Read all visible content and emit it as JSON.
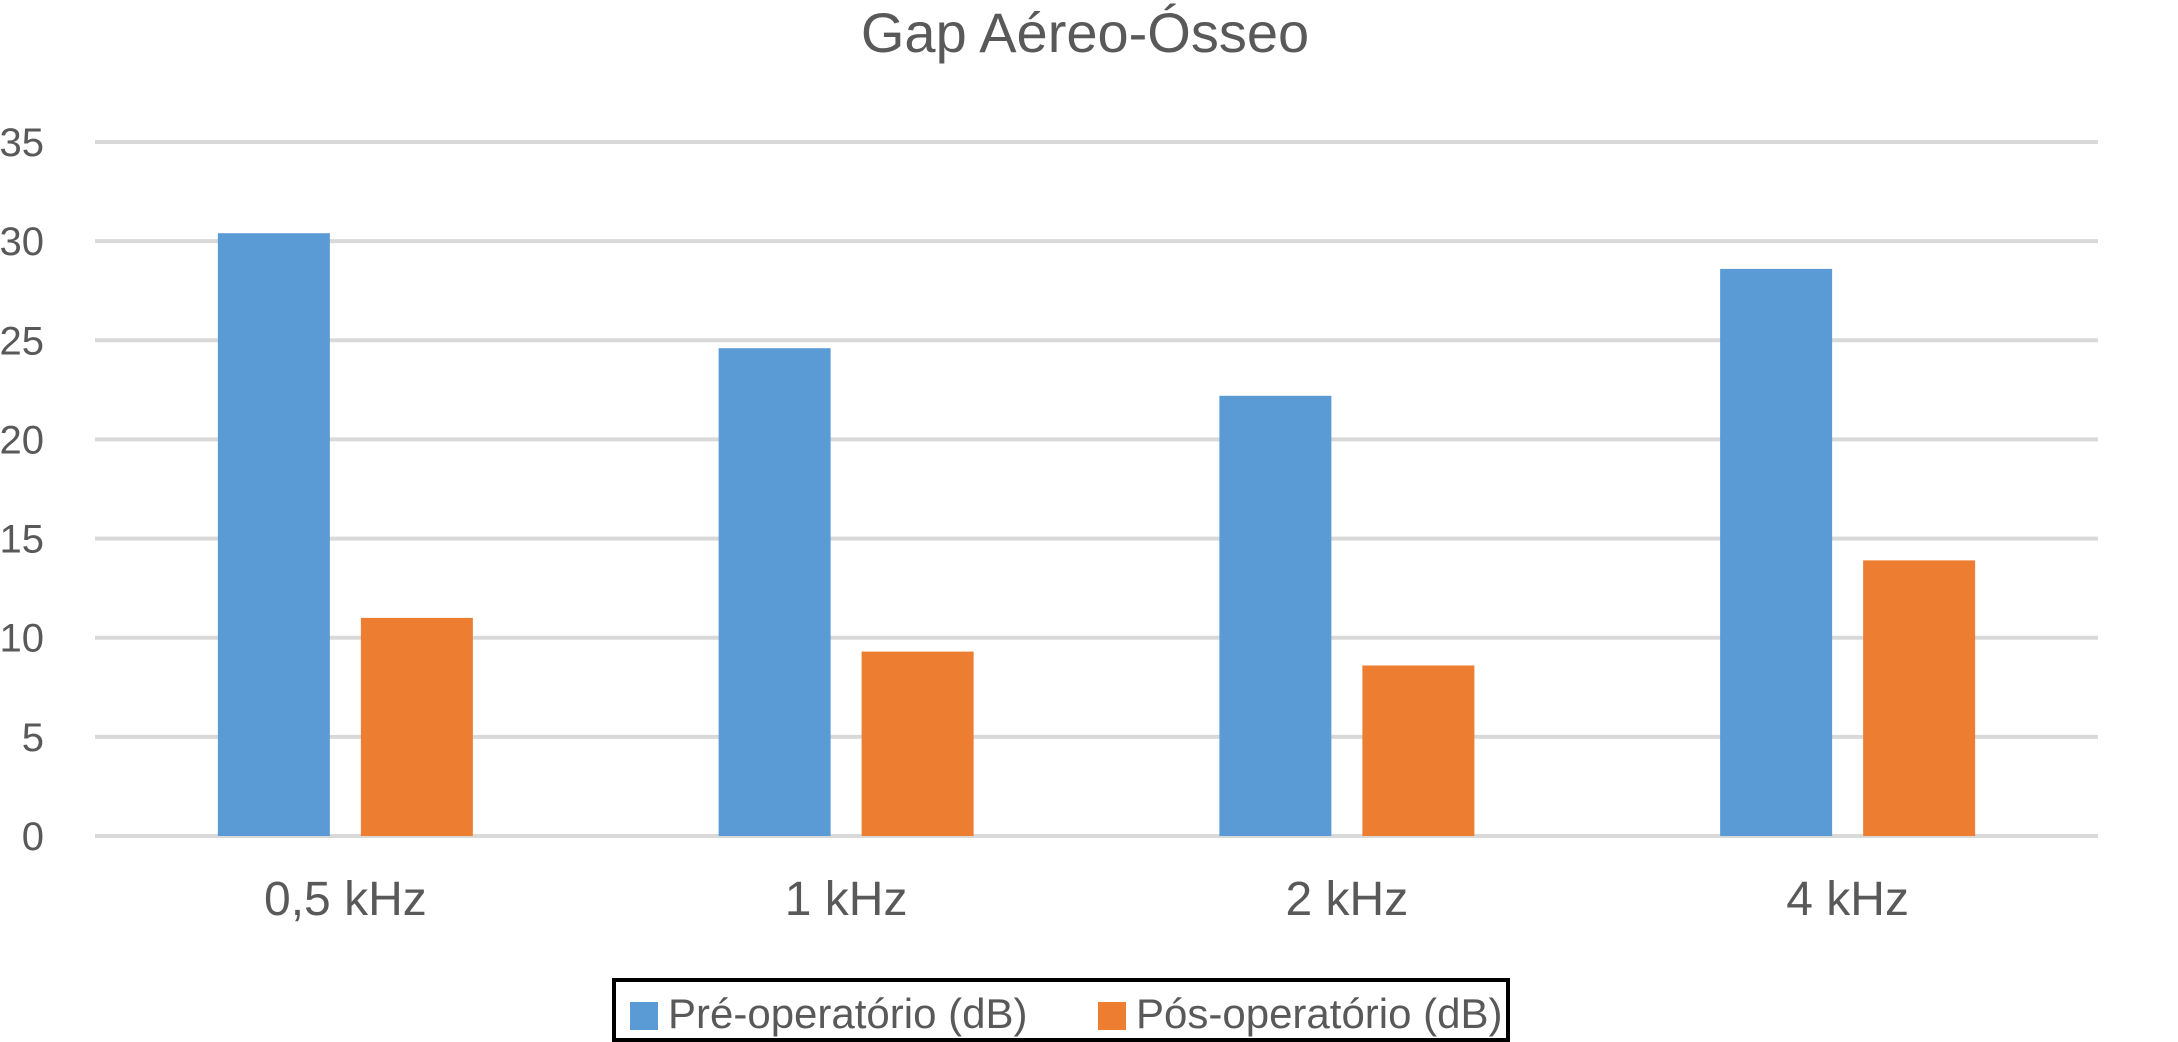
{
  "chart_data": {
    "type": "bar",
    "title": "Gap Aéreo-Ósseo",
    "categories": [
      "0,5 kHz",
      "1 kHz",
      "2 kHz",
      "4 kHz"
    ],
    "series": [
      {
        "name": "Pré-operatório (dB)",
        "color": "#5b9bd5",
        "values": [
          30.4,
          24.6,
          22.2,
          28.6
        ]
      },
      {
        "name": "Pós-operatório (dB)",
        "color": "#ed7d31",
        "values": [
          11.0,
          9.3,
          8.6,
          13.9
        ]
      }
    ],
    "ylim": [
      0,
      35
    ],
    "yticks": [
      0,
      5,
      10,
      15,
      20,
      25,
      30,
      35
    ],
    "grid": true,
    "legend": "bottom-center"
  }
}
